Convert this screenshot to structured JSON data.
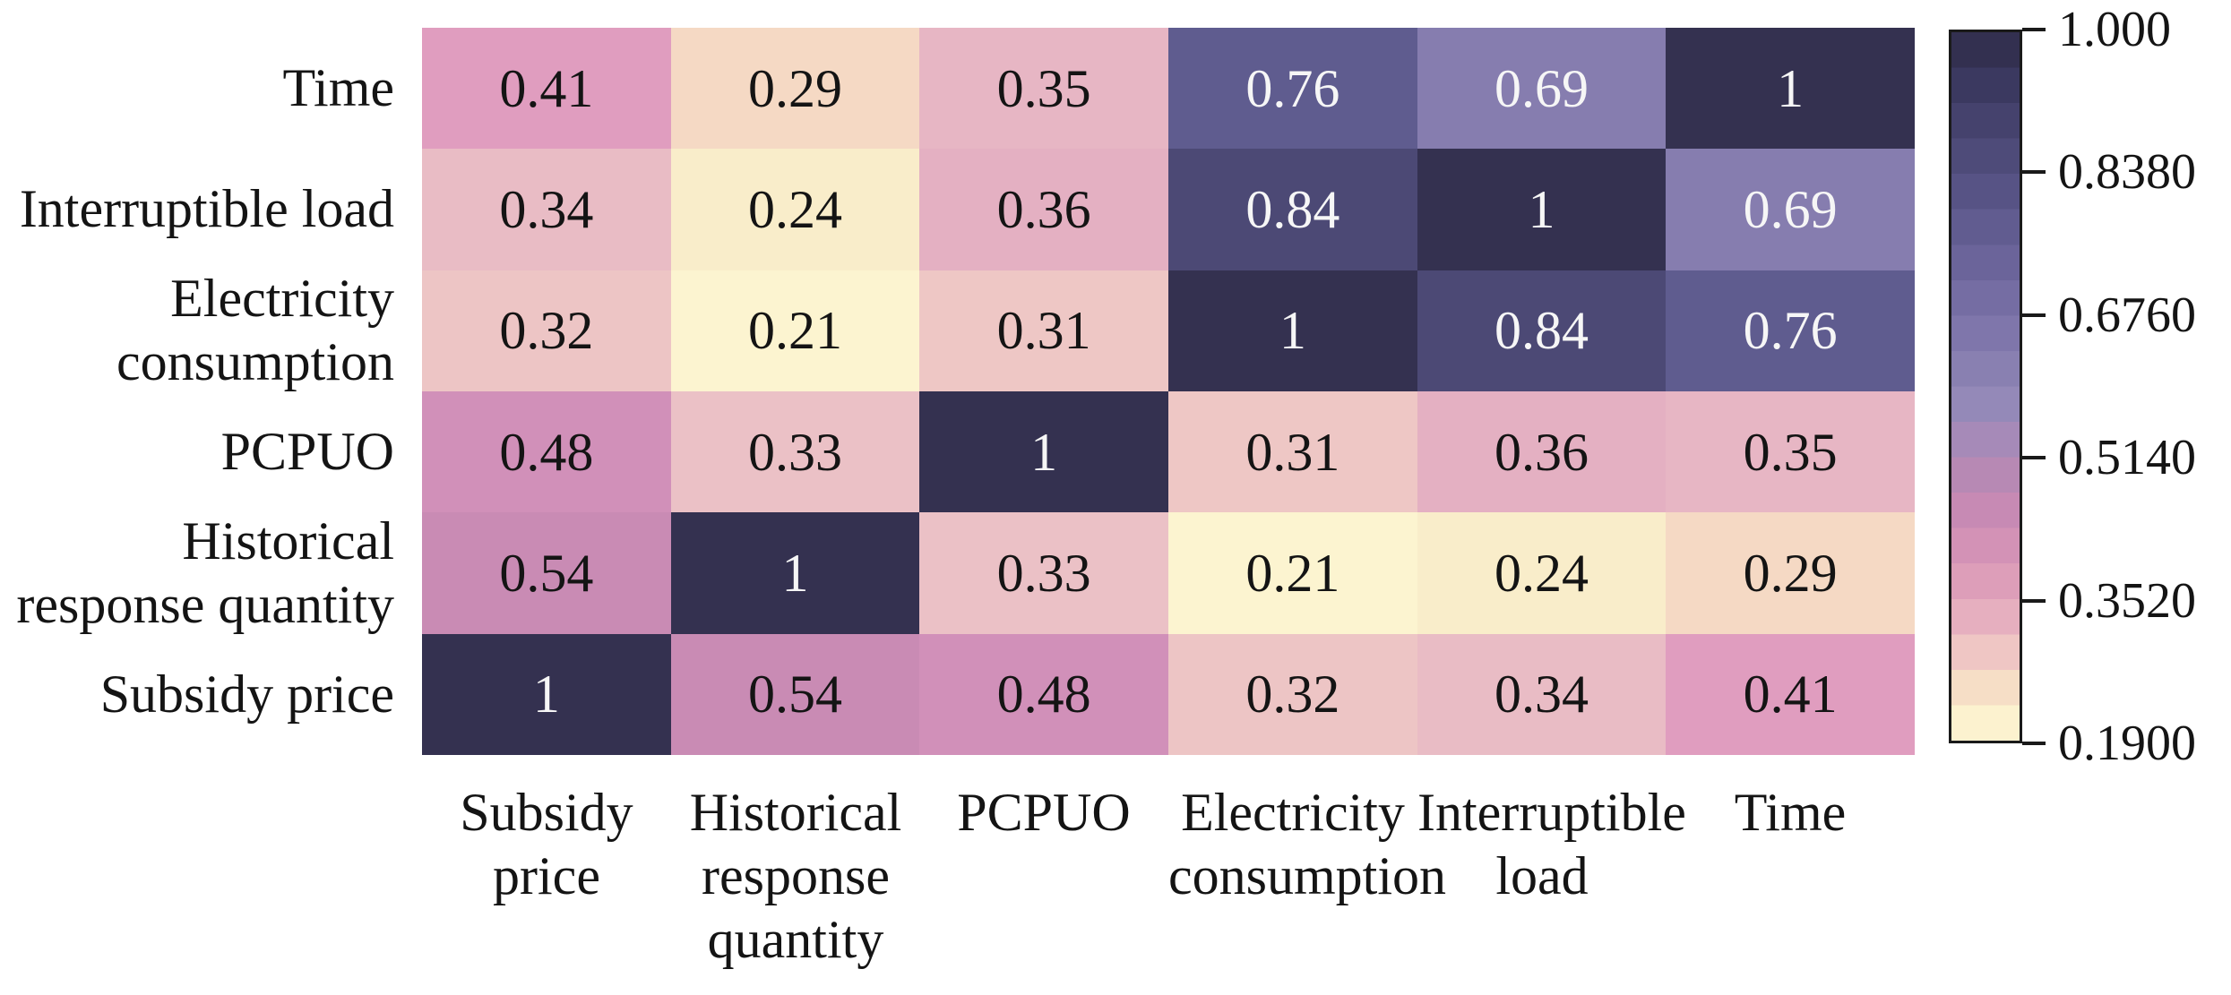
{
  "figure": {
    "background": "#ffffff"
  },
  "chart_data": {
    "type": "heatmap",
    "title": "",
    "x_categories": [
      "Subsidy price",
      "Historical response quantity",
      "PCPUO",
      "Electricity consumption",
      "Interruptible load",
      "Time"
    ],
    "y_categories_top_to_bottom": [
      "Time",
      "Interruptible load",
      "Electricity consumption",
      "PCPUO",
      "Historical response quantity",
      "Subsidy price"
    ],
    "x_tick_labels": [
      "Subsidy\nprice",
      "Historical\nresponse\nquantity",
      "PCPUO",
      "Electricity\nconsumption",
      "Interruptible\nload",
      "Time"
    ],
    "y_tick_labels": [
      "Time",
      "Interruptible load",
      "Electricity\nconsumption",
      "PCPUO",
      "Historical\nresponse quantity",
      "Subsidy price"
    ],
    "matrix_rows_top_to_bottom": [
      [
        0.41,
        0.29,
        0.35,
        0.76,
        0.69,
        1
      ],
      [
        0.34,
        0.24,
        0.36,
        0.84,
        1,
        0.69
      ],
      [
        0.32,
        0.21,
        0.31,
        1,
        0.84,
        0.76
      ],
      [
        0.48,
        0.33,
        1,
        0.31,
        0.36,
        0.35
      ],
      [
        0.54,
        1,
        0.33,
        0.21,
        0.24,
        0.29
      ],
      [
        1,
        0.54,
        0.48,
        0.32,
        0.34,
        0.41
      ]
    ],
    "vmin": 0.19,
    "vmax": 1.0,
    "value_colors": {
      "1": "#343150",
      "0.84": "#4c4975",
      "0.76": "#5f5c8f",
      "0.69": "#867daf",
      "0.54": "#c98bb4",
      "0.48": "#d190b9",
      "0.41": "#e09dbf",
      "0.36": "#e4b0c2",
      "0.35": "#e7b6c4",
      "0.34": "#e9bcc5",
      "0.33": "#ebc1c6",
      "0.32": "#edc5c5",
      "0.31": "#eec7c5",
      "0.29": "#f5d9c4",
      "0.24": "#f9edca",
      "0.21": "#fcf4d0"
    },
    "white_text_min": 0.69,
    "text_colors": {
      "light": "#f6f6f6",
      "dark": "#141414"
    },
    "colorbar": {
      "ticks": [
        "1.000",
        "0.8380",
        "0.6760",
        "0.5140",
        "0.3520",
        "0.1900"
      ],
      "band_colors_top_to_bottom": [
        "#333050",
        "#3b3960",
        "#45426d",
        "#4e4b79",
        "#575385",
        "#615c90",
        "#6b649a",
        "#756da3",
        "#7f76ab",
        "#8980b1",
        "#9489b8",
        "#a68ab8",
        "#b789b4",
        "#c78ab4",
        "#d392b6",
        "#dd9eb9",
        "#e6afbf",
        "#efc6c4",
        "#f6dec6",
        "#fcf2cf"
      ],
      "border_color": "#1a1a1a"
    },
    "legend_position": "right",
    "grid": false
  }
}
